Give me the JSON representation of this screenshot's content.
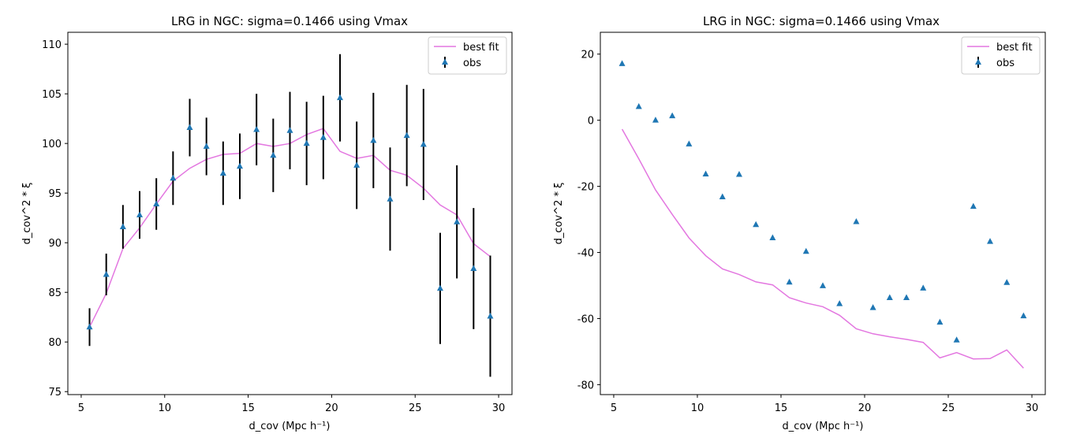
{
  "chart_data": [
    {
      "type": "line",
      "title": "LRG in NGC: sigma=0.1466 using Vmax",
      "xlabel": "d_cov (Mpc h⁻¹)",
      "ylabel": "d_cov^2 * ξ",
      "xlim": [
        4.2,
        30.8
      ],
      "ylim": [
        74.7,
        111.2
      ],
      "xticks": [
        5,
        10,
        15,
        20,
        25,
        30
      ],
      "yticks": [
        75,
        80,
        85,
        90,
        95,
        100,
        105,
        110
      ],
      "legend": "top-right",
      "grid": false,
      "x": [
        5.5,
        6.5,
        7.5,
        8.5,
        9.5,
        10.5,
        11.5,
        12.5,
        13.5,
        14.5,
        15.5,
        16.5,
        17.5,
        18.5,
        19.5,
        20.5,
        21.5,
        22.5,
        23.5,
        24.5,
        25.5,
        26.5,
        27.5,
        28.5,
        29.5
      ],
      "series": [
        {
          "name": "best fit",
          "kind": "line",
          "color": "#e377e0",
          "values": [
            81.5,
            84.9,
            89.4,
            91.5,
            93.9,
            96.2,
            97.5,
            98.4,
            98.9,
            99.0,
            100.0,
            99.7,
            100.0,
            100.9,
            101.5,
            99.2,
            98.5,
            98.8,
            97.3,
            96.8,
            95.5,
            93.8,
            92.8,
            89.9,
            88.6
          ]
        },
        {
          "name": "obs",
          "kind": "errorbar",
          "color": "#1f77b4",
          "errcolor": "#000000",
          "values": [
            81.5,
            86.8,
            91.6,
            92.8,
            93.9,
            96.5,
            101.6,
            99.7,
            97.0,
            97.7,
            101.4,
            98.8,
            101.3,
            100.0,
            100.6,
            104.6,
            97.8,
            100.3,
            94.4,
            100.8,
            99.9,
            85.4,
            92.1,
            87.4,
            82.6
          ],
          "errors": [
            1.9,
            2.1,
            2.2,
            2.4,
            2.6,
            2.7,
            2.9,
            2.9,
            3.2,
            3.3,
            3.6,
            3.7,
            3.9,
            4.2,
            4.2,
            4.4,
            4.4,
            4.8,
            5.2,
            5.1,
            5.6,
            5.6,
            5.7,
            6.1,
            6.1
          ]
        }
      ]
    },
    {
      "type": "line",
      "title": "LRG in NGC: sigma=0.1466 using Vmax",
      "xlabel": "d_cov (Mpc h⁻¹)",
      "ylabel": "d_cov^2 * ξ",
      "xlim": [
        4.2,
        30.8
      ],
      "ylim": [
        -83.0,
        26.6
      ],
      "xticks": [
        5,
        10,
        15,
        20,
        25,
        30
      ],
      "yticks": [
        -80,
        -60,
        -40,
        -20,
        0,
        20
      ],
      "legend": "top-right",
      "grid": false,
      "x": [
        5.5,
        6.5,
        7.5,
        8.5,
        9.5,
        10.5,
        11.5,
        12.5,
        13.5,
        14.5,
        15.5,
        16.5,
        17.5,
        18.5,
        19.5,
        20.5,
        21.5,
        22.5,
        23.5,
        24.5,
        25.5,
        26.5,
        27.5,
        28.5,
        29.5
      ],
      "series": [
        {
          "name": "best fit",
          "kind": "line",
          "color": "#e377e0",
          "values": [
            -2.7,
            -11.7,
            -21.1,
            -28.5,
            -35.6,
            -41.0,
            -45.0,
            -46.7,
            -48.9,
            -49.8,
            -53.7,
            -55.3,
            -56.4,
            -59.0,
            -63.1,
            -64.6,
            -65.5,
            -66.3,
            -67.2,
            -71.9,
            -70.3,
            -72.2,
            -72.1,
            -69.5,
            -75.0
          ]
        },
        {
          "name": "obs",
          "kind": "errorbar",
          "color": "#1f77b4",
          "errcolor": "#000000",
          "values": [
            17.1,
            4.1,
            0.0,
            1.3,
            -7.2,
            -16.3,
            -23.2,
            -16.4,
            -31.6,
            -35.6,
            -49.0,
            -39.7,
            -50.1,
            -55.5,
            -30.7,
            -56.7,
            -53.7,
            -53.7,
            -50.8,
            -61.1,
            -66.5,
            -26.1,
            -36.7,
            -49.1,
            -59.2
          ]
        }
      ]
    }
  ]
}
